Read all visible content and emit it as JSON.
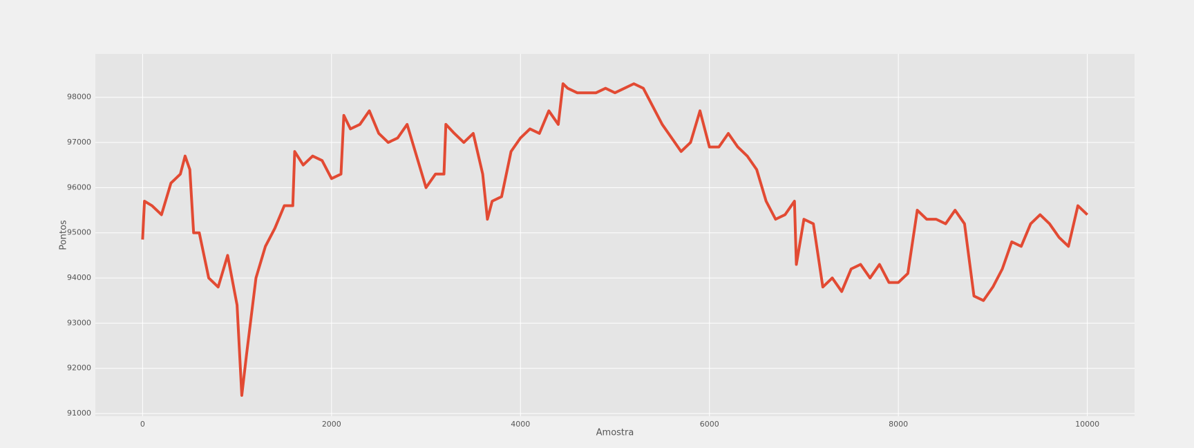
{
  "chart_data": {
    "type": "line",
    "x_label": "Amostra",
    "y_label": "Pontos",
    "x": [
      0,
      20,
      100,
      200,
      300,
      400,
      450,
      500,
      540,
      600,
      700,
      800,
      900,
      1000,
      1050,
      1100,
      1200,
      1300,
      1400,
      1500,
      1590,
      1610,
      1700,
      1800,
      1900,
      2000,
      2100,
      2130,
      2200,
      2300,
      2400,
      2500,
      2600,
      2700,
      2800,
      2900,
      3000,
      3100,
      3190,
      3210,
      3300,
      3400,
      3500,
      3600,
      3650,
      3700,
      3800,
      3900,
      4000,
      4100,
      4200,
      4300,
      4400,
      4450,
      4500,
      4600,
      4700,
      4800,
      4900,
      5000,
      5100,
      5200,
      5300,
      5400,
      5500,
      5600,
      5700,
      5800,
      5900,
      6000,
      6100,
      6200,
      6300,
      6400,
      6500,
      6600,
      6700,
      6800,
      6900,
      6920,
      7000,
      7100,
      7200,
      7300,
      7400,
      7500,
      7600,
      7700,
      7800,
      7900,
      8000,
      8100,
      8200,
      8300,
      8400,
      8500,
      8600,
      8700,
      8800,
      8900,
      9000,
      9100,
      9200,
      9300,
      9400,
      9500,
      9600,
      9700,
      9800,
      9900,
      10000
    ],
    "series": [
      {
        "name": "Pontos",
        "color": "#E24A33",
        "values": [
          94850,
          95700,
          95600,
          95400,
          96100,
          96300,
          96700,
          96400,
          95000,
          95000,
          94000,
          93800,
          94500,
          93400,
          91400,
          92300,
          94000,
          94700,
          95100,
          95600,
          95600,
          96800,
          96500,
          96700,
          96600,
          96200,
          96300,
          97600,
          97300,
          97400,
          97700,
          97200,
          97000,
          97100,
          97400,
          96700,
          96000,
          96300,
          96300,
          97400,
          97200,
          97000,
          97200,
          96300,
          95300,
          95700,
          95800,
          96800,
          97100,
          97300,
          97200,
          97700,
          97400,
          98300,
          98200,
          98100,
          98100,
          98100,
          98200,
          98100,
          98200,
          98300,
          98200,
          97800,
          97400,
          97100,
          96800,
          97000,
          97700,
          96900,
          96900,
          97200,
          96900,
          96700,
          96400,
          95700,
          95300,
          95400,
          95700,
          94300,
          95300,
          95200,
          93800,
          94000,
          93700,
          94200,
          94300,
          94000,
          94300,
          93900,
          93900,
          94100,
          95500,
          95300,
          95300,
          95200,
          95500,
          95200,
          93600,
          93500,
          93800,
          94200,
          94800,
          94700,
          95200,
          95400,
          95200,
          94900,
          94700,
          95600,
          95400
        ]
      }
    ],
    "xlim": [
      -500,
      10500
    ],
    "ylim": [
      90940,
      98960
    ],
    "xticks": [
      0,
      2000,
      4000,
      6000,
      8000,
      10000
    ],
    "yticks": [
      91000,
      92000,
      93000,
      94000,
      95000,
      96000,
      97000,
      98000
    ],
    "grid": true
  }
}
